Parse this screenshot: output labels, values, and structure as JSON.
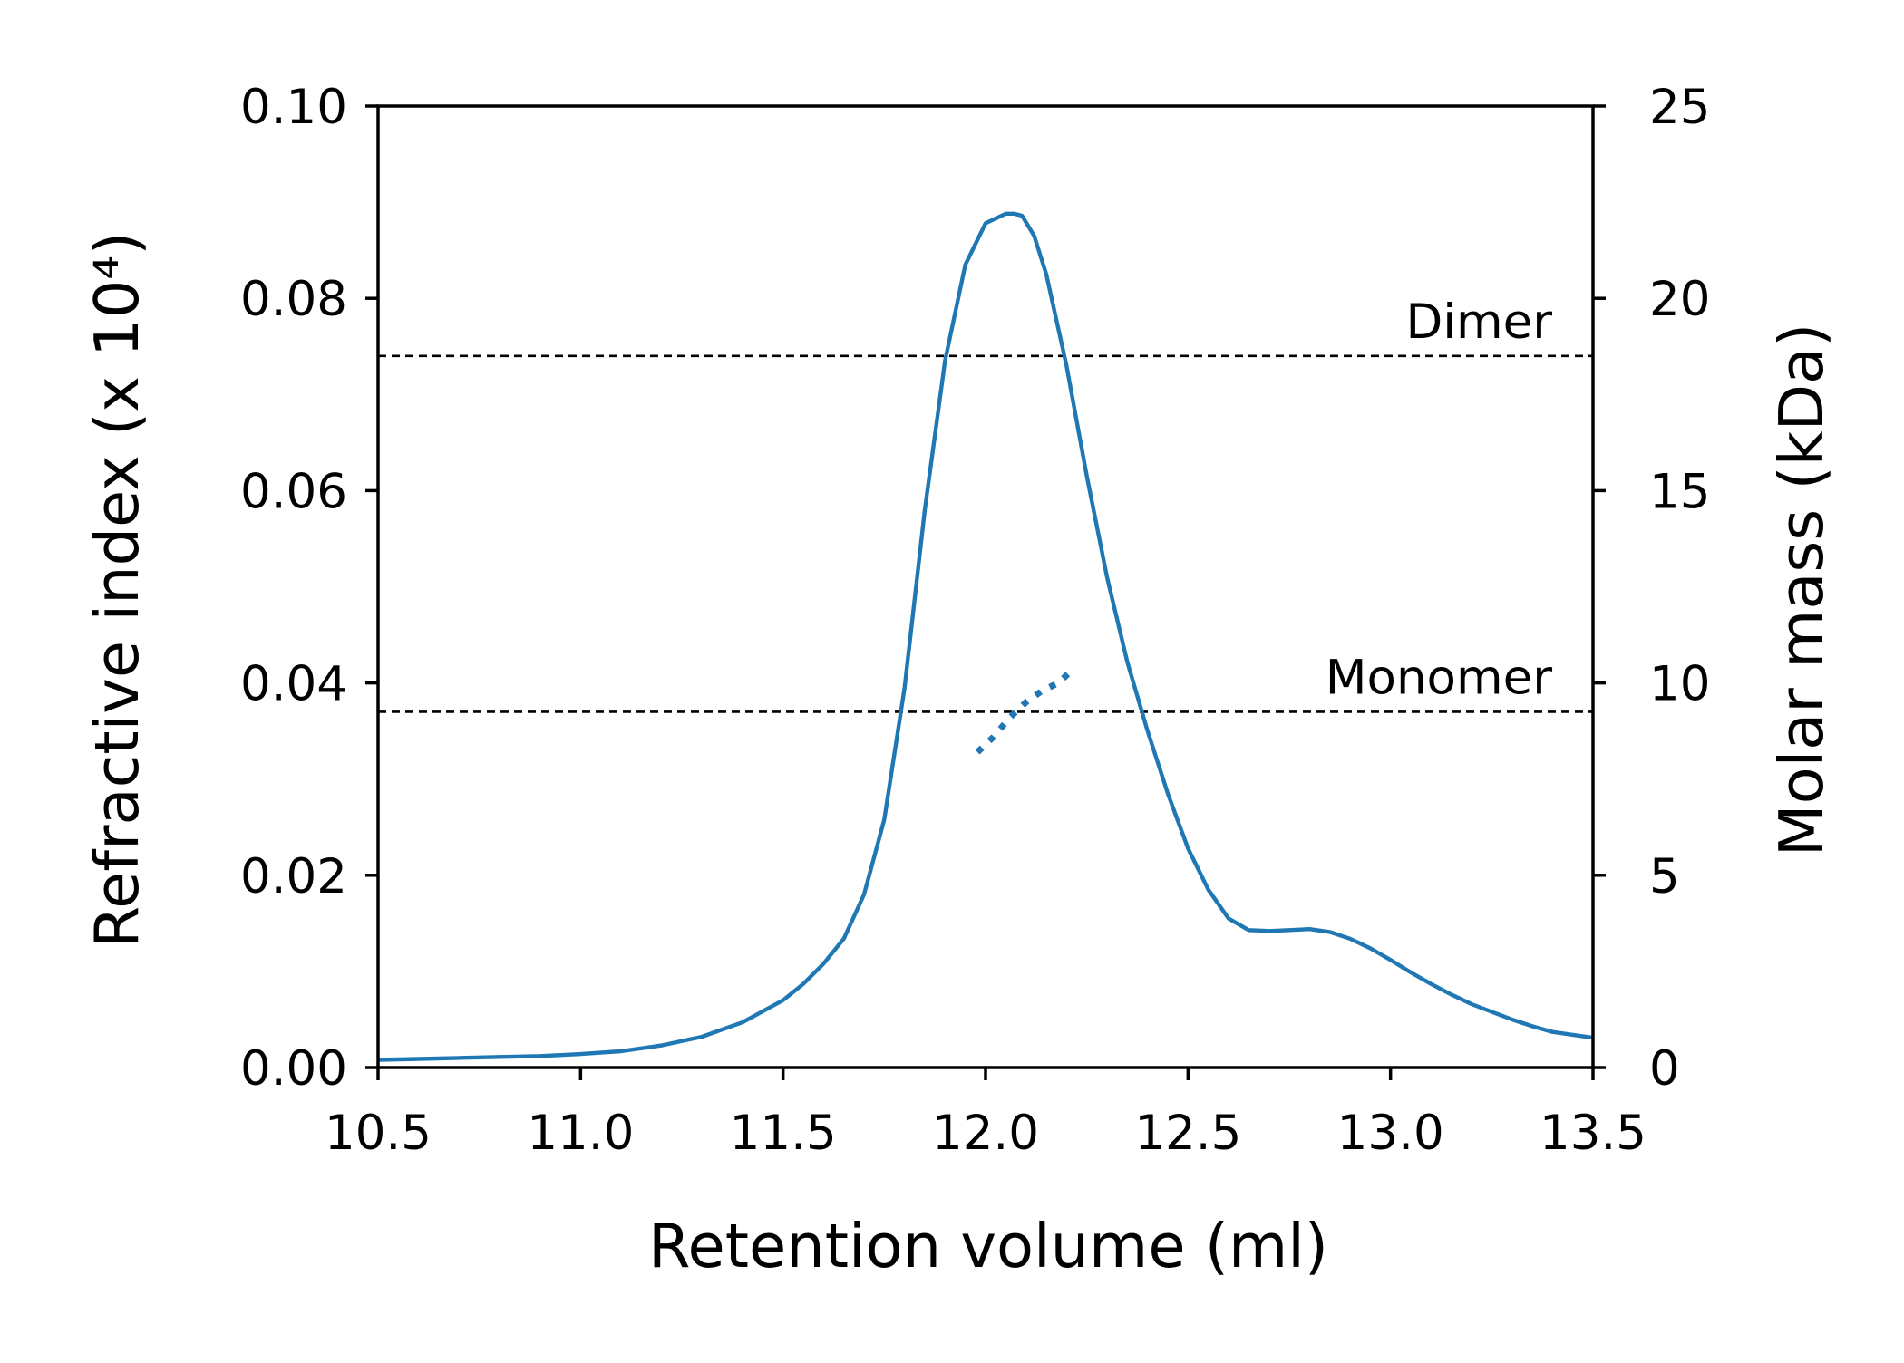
{
  "chart_data": {
    "type": "line",
    "xlabel": "Retention volume (ml)",
    "ylabel": "Refractive index (x 10⁴)",
    "ylabel_right": "Molar mass (kDa)",
    "xlim": [
      10.5,
      13.5
    ],
    "ylim": [
      0.0,
      0.1
    ],
    "ylim_right": [
      0,
      25
    ],
    "x_ticks": [
      10.5,
      11.0,
      11.5,
      12.0,
      12.5,
      13.0,
      13.5
    ],
    "x_tick_labels": [
      "10.5",
      "11.0",
      "11.5",
      "12.0",
      "12.5",
      "13.0",
      "13.5"
    ],
    "y_ticks": [
      0.0,
      0.02,
      0.04,
      0.06,
      0.08,
      0.1
    ],
    "y_tick_labels": [
      "0.00",
      "0.02",
      "0.04",
      "0.06",
      "0.08",
      "0.10"
    ],
    "y_right_ticks": [
      0,
      5,
      10,
      15,
      20,
      25
    ],
    "y_right_tick_labels": [
      "0",
      "5",
      "10",
      "15",
      "20",
      "25"
    ],
    "grid": false,
    "series": [
      {
        "axis": "left",
        "style": "solid",
        "color": "#1f77b4",
        "x": [
          10.5,
          10.6,
          10.7,
          10.8,
          10.9,
          11.0,
          11.1,
          11.2,
          11.3,
          11.4,
          11.5,
          11.55,
          11.6,
          11.65,
          11.7,
          11.75,
          11.8,
          11.85,
          11.9,
          11.95,
          12.0,
          12.05,
          12.07,
          12.09,
          12.12,
          12.15,
          12.2,
          12.25,
          12.3,
          12.35,
          12.4,
          12.45,
          12.5,
          12.55,
          12.6,
          12.65,
          12.7,
          12.75,
          12.8,
          12.85,
          12.9,
          12.95,
          13.0,
          13.05,
          13.1,
          13.15,
          13.2,
          13.25,
          13.3,
          13.35,
          13.4,
          13.45,
          13.5
        ],
        "y": [
          0.0008,
          0.0009,
          0.001,
          0.0011,
          0.0012,
          0.0014,
          0.0017,
          0.0023,
          0.0032,
          0.0047,
          0.007,
          0.0087,
          0.0108,
          0.0134,
          0.018,
          0.0258,
          0.0395,
          0.058,
          0.0735,
          0.0835,
          0.0878,
          0.0888,
          0.0888,
          0.0886,
          0.0865,
          0.0825,
          0.073,
          0.0615,
          0.051,
          0.0422,
          0.035,
          0.0285,
          0.0228,
          0.0185,
          0.0155,
          0.0143,
          0.0142,
          0.0143,
          0.0144,
          0.0141,
          0.0134,
          0.0124,
          0.0112,
          0.0099,
          0.0087,
          0.0076,
          0.0066,
          0.0058,
          0.005,
          0.0043,
          0.0037,
          0.0034,
          0.0031
        ]
      },
      {
        "axis": "right",
        "style": "dotted",
        "color": "#1f77b4",
        "x": [
          11.98,
          12.02,
          12.06,
          12.1,
          12.14,
          12.18,
          12.21
        ],
        "y": [
          8.2,
          8.6,
          9.1,
          9.5,
          9.8,
          10.0,
          10.3
        ]
      }
    ],
    "reference_lines": [
      {
        "axis": "right",
        "y": 18.5,
        "label": "Dimer",
        "style": "dashed",
        "color": "#000000"
      },
      {
        "axis": "right",
        "y": 9.25,
        "label": "Monomer",
        "style": "dashed",
        "color": "#000000"
      }
    ]
  }
}
